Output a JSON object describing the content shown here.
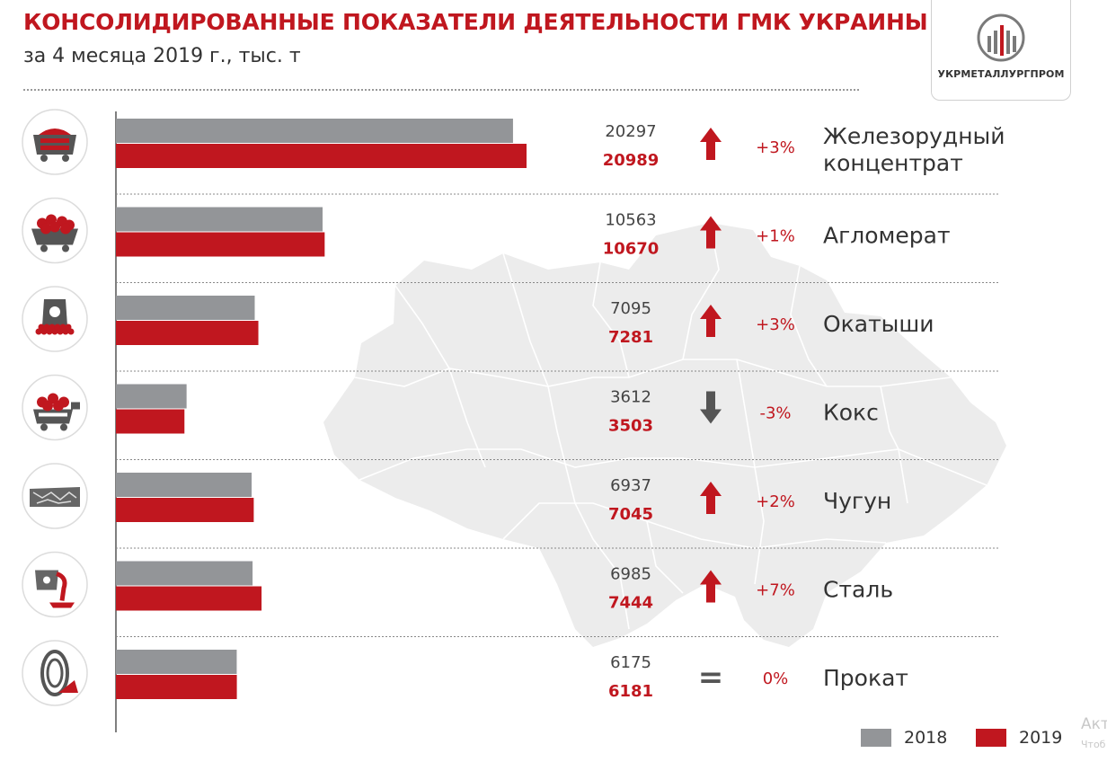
{
  "header": {
    "title": "КОНСОЛИДИРОВАННЫЕ ПОКАЗАТЕЛИ ДЕЯТЕЛЬНОСТИ ГМК УКРАИНЫ",
    "subtitle": "за 4 месяца 2019 г., тыс. т"
  },
  "logo": {
    "text": "УКРМЕТАЛЛУРГПРОМ"
  },
  "colors": {
    "accent": "#c0171f",
    "gray": "#939598",
    "map": "#ececec"
  },
  "chart_data": {
    "type": "bar",
    "orientation": "horizontal",
    "title": "КОНСОЛИДИРОВАННЫЕ ПОКАЗАТЕЛИ ДЕЯТЕЛЬНОСТИ ГМК УКРАИНЫ",
    "subtitle": "за 4 месяца 2019 г., тыс. т",
    "categories": [
      [
        "Железорудный",
        "концентрат"
      ],
      [
        "Агломерат"
      ],
      [
        "Окатыши"
      ],
      [
        "Кокс"
      ],
      [
        "Чугун"
      ],
      [
        "Сталь"
      ],
      [
        "Прокат"
      ]
    ],
    "icons": [
      "ore-cart-icon",
      "sinter-cart-icon",
      "pellet-bag-icon",
      "coke-cart-icon",
      "pig-iron-icon",
      "steel-ladle-icon",
      "rolled-coil-icon"
    ],
    "series": [
      {
        "name": "2018",
        "color": "#939598",
        "values": [
          20297,
          10563,
          7095,
          3612,
          6937,
          6985,
          6175
        ]
      },
      {
        "name": "2019",
        "color": "#c0171f",
        "values": [
          20989,
          10670,
          7281,
          3503,
          7045,
          7444,
          6181
        ]
      }
    ],
    "changes": [
      "+3%",
      "+1%",
      "+3%",
      "-3%",
      "+2%",
      "+7%",
      "0%"
    ],
    "trend": [
      "up",
      "up",
      "up",
      "down",
      "up",
      "up",
      "equal"
    ],
    "trend_symbols": {
      "equal": "="
    },
    "xlim": [
      0,
      20989
    ],
    "grid": false,
    "legend": {
      "position": "bottom-right",
      "items": [
        "2018",
        "2019"
      ]
    }
  },
  "watermark": {
    "text": "Акт",
    "sub": "Чтоб"
  }
}
